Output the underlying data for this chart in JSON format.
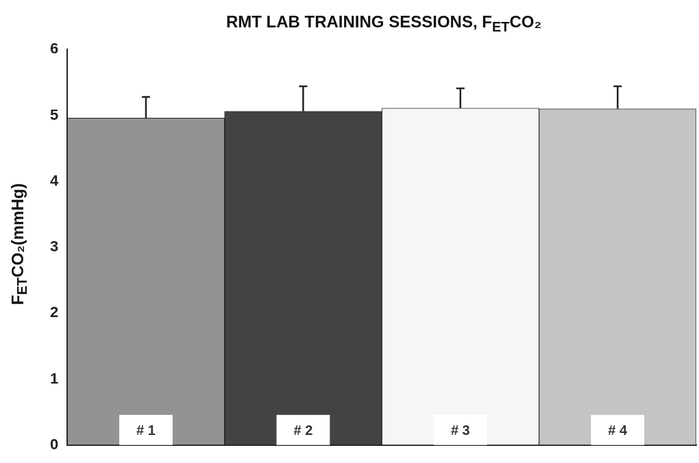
{
  "chart_data": {
    "type": "bar",
    "title": "RMT LAB TRAINING SESSIONS, F$_{ET}$CO₂",
    "ylabel": "F$_{ET}$CO₂(mmHg)",
    "categories": [
      "# 1",
      "# 2",
      "# 3",
      "# 4"
    ],
    "values": [
      4.96,
      5.06,
      5.11,
      5.1
    ],
    "colors": [
      "#939393",
      "#434343",
      "#f6f6f6",
      "#c4c4c4"
    ],
    "errors": [
      [
        4.96,
        5.28
      ],
      [
        5.06,
        5.44
      ],
      [
        5.11,
        5.41
      ],
      [
        5.1,
        5.44
      ]
    ],
    "ylim": [
      0,
      6
    ],
    "yticks": [
      0,
      1,
      2,
      3,
      4,
      5,
      6
    ],
    "tick_labels": "y"
  }
}
